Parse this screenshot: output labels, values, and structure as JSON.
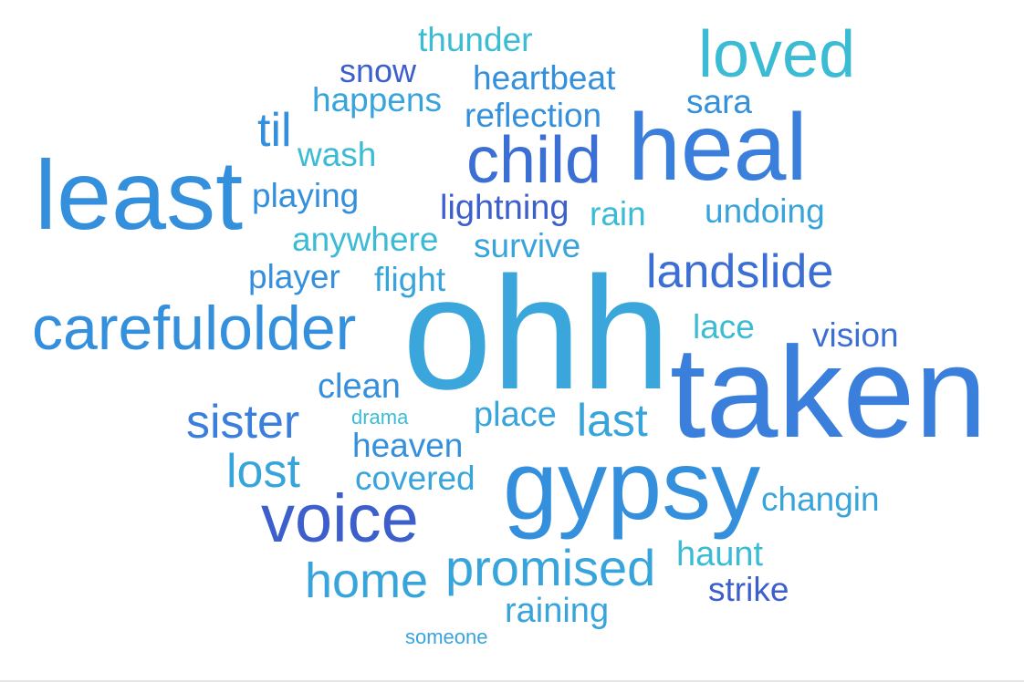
{
  "palette": {
    "cyan": "#3bbcd4",
    "sky": "#38a4dc",
    "azure": "#3490dc",
    "blue": "#3a7fdc",
    "indigo": "#3c5fcc"
  },
  "words": [
    {
      "text": "ohh",
      "color": "#3aa6dc"
    },
    {
      "text": "taken",
      "color": "#3a7fdc"
    },
    {
      "text": "gypsy",
      "color": "#3490dc"
    },
    {
      "text": "least",
      "color": "#3490dc"
    },
    {
      "text": "heal",
      "color": "#3a7fdc"
    },
    {
      "text": "carefulolder",
      "color": "#3490dc"
    },
    {
      "text": "voice",
      "color": "#3c5fcc"
    },
    {
      "text": "child",
      "color": "#3c6fd4"
    },
    {
      "text": "loved",
      "color": "#3bbcd4"
    },
    {
      "text": "promised",
      "color": "#38a4dc"
    },
    {
      "text": "home",
      "color": "#38a4dc"
    },
    {
      "text": "landslide",
      "color": "#3c6fd4"
    },
    {
      "text": "sister",
      "color": "#3a7fdc"
    },
    {
      "text": "lost",
      "color": "#38a4dc"
    },
    {
      "text": "last",
      "color": "#38a4dc"
    },
    {
      "text": "til",
      "color": "#3490dc"
    },
    {
      "text": "thunder",
      "color": "#3bbcd4"
    },
    {
      "text": "snow",
      "color": "#3c5fcc"
    },
    {
      "text": "heartbeat",
      "color": "#3490dc"
    },
    {
      "text": "happens",
      "color": "#38a4dc"
    },
    {
      "text": "reflection",
      "color": "#3490dc"
    },
    {
      "text": "sara",
      "color": "#3490dc"
    },
    {
      "text": "wash",
      "color": "#3bbcd4"
    },
    {
      "text": "playing",
      "color": "#3490dc"
    },
    {
      "text": "lightning",
      "color": "#3c5fcc"
    },
    {
      "text": "rain",
      "color": "#3bbcd4"
    },
    {
      "text": "undoing",
      "color": "#38a4dc"
    },
    {
      "text": "anywhere",
      "color": "#3bbcd4"
    },
    {
      "text": "survive",
      "color": "#38a4dc"
    },
    {
      "text": "player",
      "color": "#3490dc"
    },
    {
      "text": "flight",
      "color": "#38a4dc"
    },
    {
      "text": "lace",
      "color": "#3bbcd4"
    },
    {
      "text": "vision",
      "color": "#3c6fd4"
    },
    {
      "text": "clean",
      "color": "#3490dc"
    },
    {
      "text": "drama",
      "color": "#3bbcd4"
    },
    {
      "text": "place",
      "color": "#38a4dc"
    },
    {
      "text": "heaven",
      "color": "#3490dc"
    },
    {
      "text": "covered",
      "color": "#38a4dc"
    },
    {
      "text": "changin",
      "color": "#38a4dc"
    },
    {
      "text": "haunt",
      "color": "#3bbcd4"
    },
    {
      "text": "strike",
      "color": "#3c5fcc"
    },
    {
      "text": "raining",
      "color": "#38a4dc"
    },
    {
      "text": "someone",
      "color": "#38a4dc"
    }
  ]
}
